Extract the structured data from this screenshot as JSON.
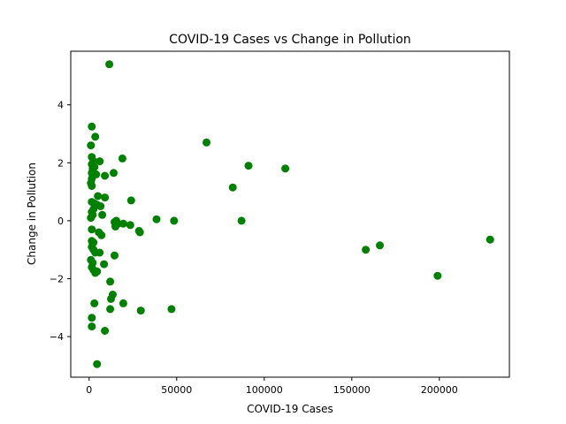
{
  "chart_data": {
    "type": "scatter",
    "title": "COVID-19 Cases vs Change in Pollution",
    "xlabel": "COVID-19 Cases",
    "ylabel": "Change in Pollution",
    "xlim": [
      -10500,
      240000
    ],
    "ylim": [
      -5.4,
      5.85
    ],
    "xticks": [
      0,
      50000,
      100000,
      150000,
      200000
    ],
    "yticks": [
      -4,
      -2,
      0,
      2,
      4
    ],
    "xtick_labels": [
      "0",
      "50000",
      "100000",
      "150000",
      "200000"
    ],
    "ytick_labels": [
      "−4",
      "−2",
      "0",
      "2",
      "4"
    ],
    "grid": false,
    "marker_color": "#008000",
    "points": [
      [
        11500,
        5.4
      ],
      [
        1500,
        3.25
      ],
      [
        3500,
        2.9
      ],
      [
        1000,
        2.6
      ],
      [
        1500,
        2.2
      ],
      [
        2500,
        2.05
      ],
      [
        6000,
        2.05
      ],
      [
        1500,
        1.95
      ],
      [
        3000,
        1.85
      ],
      [
        2000,
        1.8
      ],
      [
        1500,
        1.65
      ],
      [
        4000,
        1.6
      ],
      [
        1500,
        1.45
      ],
      [
        1000,
        1.3
      ],
      [
        1500,
        1.2
      ],
      [
        9000,
        1.55
      ],
      [
        14000,
        1.65
      ],
      [
        19000,
        2.15
      ],
      [
        67000,
        2.7
      ],
      [
        91000,
        1.9
      ],
      [
        112000,
        1.8
      ],
      [
        82000,
        1.15
      ],
      [
        5000,
        0.85
      ],
      [
        9000,
        0.8
      ],
      [
        1500,
        0.65
      ],
      [
        3000,
        0.6
      ],
      [
        4500,
        0.55
      ],
      [
        6500,
        0.5
      ],
      [
        2500,
        0.4
      ],
      [
        1500,
        0.3
      ],
      [
        2000,
        0.2
      ],
      [
        7500,
        0.2
      ],
      [
        1000,
        0.1
      ],
      [
        24000,
        0.7
      ],
      [
        14500,
        -0.05
      ],
      [
        16500,
        -0.1
      ],
      [
        19500,
        -0.1
      ],
      [
        23500,
        -0.15
      ],
      [
        15000,
        -0.2
      ],
      [
        38500,
        0.05
      ],
      [
        48500,
        0.0
      ],
      [
        87000,
        0.0
      ],
      [
        15500,
        0.0
      ],
      [
        1500,
        -0.3
      ],
      [
        5500,
        -0.4
      ],
      [
        7000,
        -0.5
      ],
      [
        28500,
        -0.35
      ],
      [
        29000,
        -0.4
      ],
      [
        1500,
        -0.7
      ],
      [
        2500,
        -0.75
      ],
      [
        1500,
        -0.9
      ],
      [
        2500,
        -1.0
      ],
      [
        3500,
        -1.1
      ],
      [
        6000,
        -1.1
      ],
      [
        1000,
        -1.35
      ],
      [
        2000,
        -1.45
      ],
      [
        1500,
        -1.6
      ],
      [
        2500,
        -1.7
      ],
      [
        3500,
        -1.8
      ],
      [
        4500,
        -1.75
      ],
      [
        8500,
        -1.5
      ],
      [
        14500,
        -1.2
      ],
      [
        158000,
        -1.0
      ],
      [
        166000,
        -0.85
      ],
      [
        229000,
        -0.65
      ],
      [
        199000,
        -1.9
      ],
      [
        12000,
        -2.1
      ],
      [
        13500,
        -2.55
      ],
      [
        12500,
        -2.7
      ],
      [
        19500,
        -2.85
      ],
      [
        3000,
        -2.85
      ],
      [
        12000,
        -3.05
      ],
      [
        29500,
        -3.1
      ],
      [
        47000,
        -3.05
      ],
      [
        1500,
        -3.35
      ],
      [
        1500,
        -3.65
      ],
      [
        9000,
        -3.8
      ],
      [
        4500,
        -4.95
      ]
    ]
  }
}
